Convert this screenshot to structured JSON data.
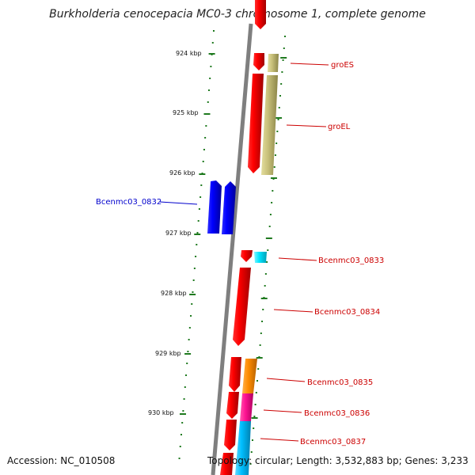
{
  "title": "Burkholderia cenocepacia MC0-3 chromosome 1, complete genome",
  "footer": {
    "accession": "Accession: NC_010508",
    "summary": "Topology: circular; Length: 3,532,883 bp; Genes: 3,233"
  },
  "colors": {
    "backbone": "#7f7f7f",
    "tick": "#1f7a1f",
    "gene_red": "#ff0000",
    "gene_blue": "#0000ff",
    "gene_khaki": "#bdb76b",
    "gene_cyan": "#00e5ff",
    "gene_orange": "#ff8c00",
    "gene_pink": "#ff1493",
    "gene_skyblue": "#00bfff",
    "label_red": "#cc0000",
    "label_blue": "#0000cc"
  },
  "tick_labels": [
    "924 kbp",
    "925 kbp",
    "926 kbp",
    "927 kbp",
    "928 kbp",
    "929 kbp",
    "930 kbp"
  ],
  "gene_labels": {
    "groES": "groES",
    "groEL": "groEL",
    "g0832": "Bcenmc03_0832",
    "g0833": "Bcenmc03_0833",
    "g0834": "Bcenmc03_0834",
    "g0835": "Bcenmc03_0835",
    "g0836": "Bcenmc03_0836",
    "g0837": "Bcenmc03_0837"
  }
}
